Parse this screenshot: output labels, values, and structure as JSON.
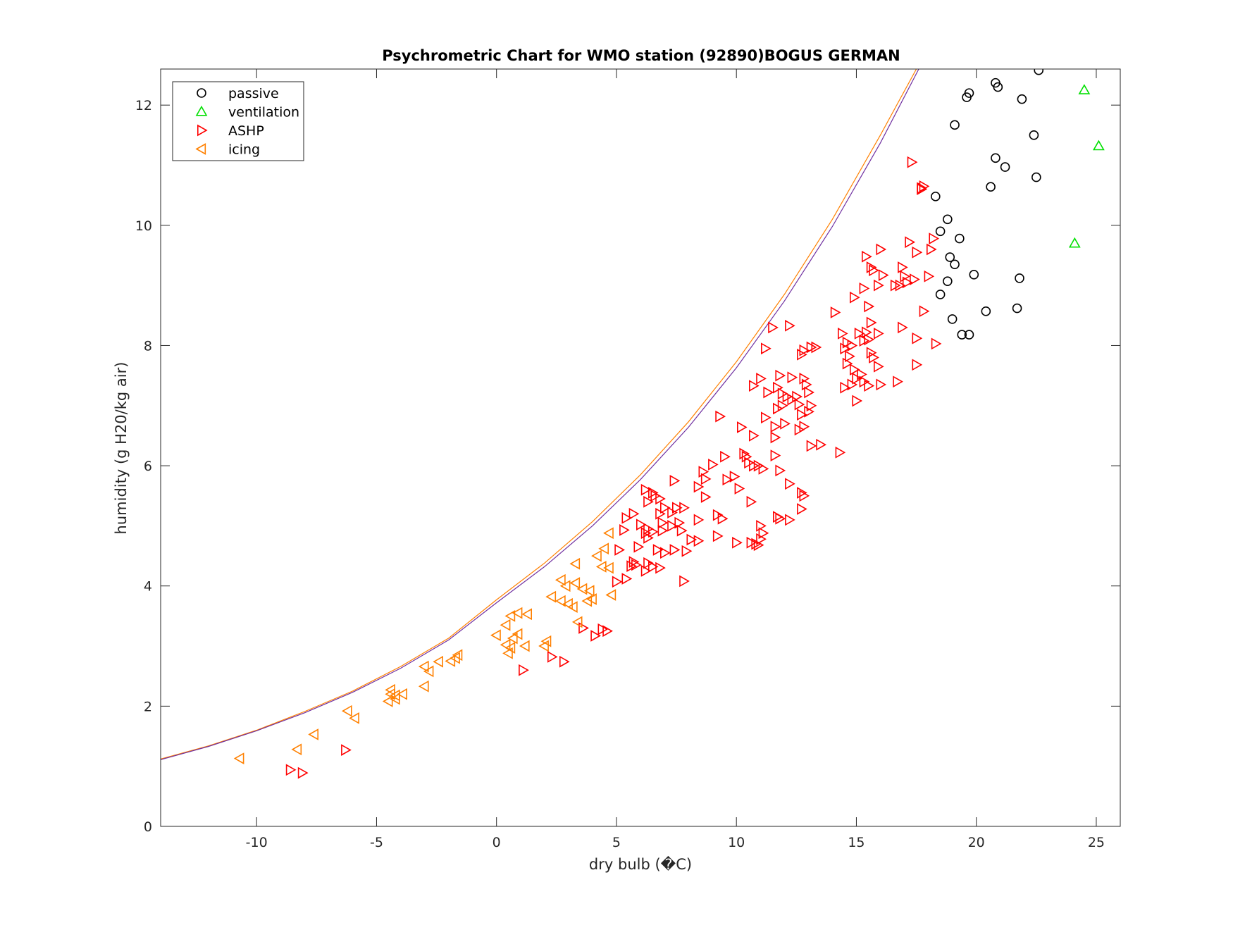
{
  "chart_data": {
    "type": "scatter",
    "title": "Psychrometric Chart for WMO station (92890)BOGUS GERMAN",
    "xlabel": "dry bulb (�C)",
    "ylabel": "humidity (g H20/kg air)",
    "xlim": [
      -14,
      26
    ],
    "ylim": [
      0,
      12.6
    ],
    "xticks": [
      -10,
      -5,
      0,
      5,
      10,
      15,
      20,
      25
    ],
    "yticks": [
      0,
      2,
      4,
      6,
      8,
      10,
      12
    ],
    "grid": false,
    "legend_position": "top-left",
    "saturation_curves": [
      {
        "color": "#ff8000",
        "x": [
          -14,
          -12,
          -10,
          -8,
          -6,
          -4,
          -2,
          0,
          2,
          4,
          6,
          8,
          10,
          12,
          14,
          16,
          17.5
        ],
        "y": [
          1.12,
          1.34,
          1.6,
          1.91,
          2.25,
          2.66,
          3.13,
          3.77,
          4.38,
          5.07,
          5.85,
          6.73,
          7.73,
          8.85,
          10.1,
          11.5,
          12.6
        ]
      },
      {
        "color": "#7030a0",
        "x": [
          -14,
          -12,
          -10,
          -8,
          -6,
          -4,
          -2,
          0,
          2,
          4,
          6,
          8,
          10,
          12,
          14,
          16,
          17.6
        ],
        "y": [
          1.11,
          1.33,
          1.59,
          1.89,
          2.23,
          2.63,
          3.1,
          3.72,
          4.32,
          5.0,
          5.77,
          6.64,
          7.63,
          8.74,
          9.98,
          11.37,
          12.6
        ]
      }
    ],
    "series": [
      {
        "name": "passive",
        "marker": "circle",
        "color": "#000000",
        "points": [
          [
            22.6,
            12.58
          ],
          [
            20.8,
            12.37
          ],
          [
            20.9,
            12.3
          ],
          [
            19.7,
            12.2
          ],
          [
            19.6,
            12.13
          ],
          [
            21.9,
            12.1
          ],
          [
            19.1,
            11.67
          ],
          [
            22.4,
            11.5
          ],
          [
            20.8,
            11.12
          ],
          [
            21.2,
            10.97
          ],
          [
            22.5,
            10.8
          ],
          [
            20.6,
            10.64
          ],
          [
            18.3,
            10.48
          ],
          [
            18.8,
            10.1
          ],
          [
            18.5,
            9.9
          ],
          [
            19.3,
            9.78
          ],
          [
            18.9,
            9.47
          ],
          [
            19.1,
            9.35
          ],
          [
            19.9,
            9.18
          ],
          [
            21.8,
            9.12
          ],
          [
            18.8,
            9.07
          ],
          [
            18.5,
            8.85
          ],
          [
            21.7,
            8.62
          ],
          [
            20.4,
            8.57
          ],
          [
            19.0,
            8.44
          ],
          [
            19.4,
            8.18
          ],
          [
            19.7,
            8.18
          ]
        ]
      },
      {
        "name": "ventilation",
        "marker": "triangle-up",
        "color": "#00e000",
        "points": [
          [
            24.5,
            12.25
          ],
          [
            25.1,
            11.32
          ],
          [
            24.1,
            9.7
          ]
        ]
      },
      {
        "name": "ASHP",
        "marker": "triangle-right",
        "color": "#ff0000",
        "points": [
          [
            17.3,
            11.05
          ],
          [
            17.7,
            10.62
          ],
          [
            17.7,
            10.6
          ],
          [
            17.8,
            10.65
          ],
          [
            17.2,
            9.72
          ],
          [
            18.2,
            9.78
          ],
          [
            17.5,
            9.55
          ],
          [
            18.1,
            9.6
          ],
          [
            15.4,
            9.48
          ],
          [
            16.0,
            9.6
          ],
          [
            15.6,
            9.3
          ],
          [
            15.7,
            9.25
          ],
          [
            16.9,
            9.3
          ],
          [
            17.0,
            9.15
          ],
          [
            17.1,
            9.05
          ],
          [
            17.4,
            9.1
          ],
          [
            18.0,
            9.15
          ],
          [
            16.1,
            9.17
          ],
          [
            15.3,
            8.95
          ],
          [
            15.9,
            9.0
          ],
          [
            16.6,
            9.0
          ],
          [
            16.8,
            9.0
          ],
          [
            14.9,
            8.8
          ],
          [
            14.1,
            8.55
          ],
          [
            15.5,
            8.65
          ],
          [
            17.8,
            8.57
          ],
          [
            15.4,
            8.22
          ],
          [
            15.6,
            8.38
          ],
          [
            14.4,
            8.2
          ],
          [
            16.9,
            8.3
          ],
          [
            13.1,
            7.97
          ],
          [
            13.3,
            7.97
          ],
          [
            12.8,
            7.92
          ],
          [
            12.7,
            7.85
          ],
          [
            14.5,
            7.95
          ],
          [
            14.6,
            8.05
          ],
          [
            14.8,
            8.0
          ],
          [
            15.1,
            8.2
          ],
          [
            15.3,
            8.08
          ],
          [
            15.5,
            8.1
          ],
          [
            15.9,
            8.2
          ],
          [
            17.5,
            8.12
          ],
          [
            18.3,
            8.03
          ],
          [
            11.5,
            8.3
          ],
          [
            12.2,
            8.33
          ],
          [
            11.2,
            7.95
          ],
          [
            14.7,
            7.82
          ],
          [
            14.6,
            7.7
          ],
          [
            14.9,
            7.6
          ],
          [
            15.0,
            7.45
          ],
          [
            15.2,
            7.52
          ],
          [
            15.6,
            7.88
          ],
          [
            15.7,
            7.8
          ],
          [
            15.9,
            7.65
          ],
          [
            17.5,
            7.68
          ],
          [
            14.5,
            7.3
          ],
          [
            14.8,
            7.35
          ],
          [
            15.3,
            7.4
          ],
          [
            15.5,
            7.33
          ],
          [
            16.0,
            7.35
          ],
          [
            16.7,
            7.4
          ],
          [
            15.0,
            7.08
          ],
          [
            11.8,
            7.5
          ],
          [
            12.3,
            7.47
          ],
          [
            12.8,
            7.45
          ],
          [
            11.0,
            7.45
          ],
          [
            11.7,
            7.3
          ],
          [
            11.9,
            7.2
          ],
          [
            12.1,
            7.15
          ],
          [
            12.3,
            7.1
          ],
          [
            12.6,
            7.02
          ],
          [
            12.9,
            7.35
          ],
          [
            13.0,
            7.22
          ],
          [
            10.7,
            7.33
          ],
          [
            11.3,
            7.22
          ],
          [
            11.7,
            6.95
          ],
          [
            11.9,
            7.0
          ],
          [
            12.5,
            7.15
          ],
          [
            12.7,
            6.85
          ],
          [
            13.1,
            7.0
          ],
          [
            13.0,
            6.9
          ],
          [
            11.2,
            6.8
          ],
          [
            11.6,
            6.65
          ],
          [
            12.0,
            6.7
          ],
          [
            12.6,
            6.6
          ],
          [
            12.8,
            6.65
          ],
          [
            13.1,
            6.33
          ],
          [
            13.5,
            6.35
          ],
          [
            14.3,
            6.22
          ],
          [
            9.3,
            6.82
          ],
          [
            10.2,
            6.64
          ],
          [
            10.7,
            6.5
          ],
          [
            11.6,
            6.47
          ],
          [
            9.5,
            6.15
          ],
          [
            10.3,
            6.2
          ],
          [
            10.4,
            6.15
          ],
          [
            10.5,
            6.05
          ],
          [
            10.7,
            6.0
          ],
          [
            10.9,
            6.0
          ],
          [
            11.1,
            5.95
          ],
          [
            11.6,
            6.17
          ],
          [
            11.8,
            5.92
          ],
          [
            12.2,
            5.7
          ],
          [
            12.7,
            5.55
          ],
          [
            12.8,
            5.5
          ],
          [
            9.0,
            6.02
          ],
          [
            9.6,
            5.77
          ],
          [
            9.9,
            5.82
          ],
          [
            8.6,
            5.9
          ],
          [
            8.7,
            5.78
          ],
          [
            8.4,
            5.65
          ],
          [
            10.1,
            5.62
          ],
          [
            7.4,
            5.75
          ],
          [
            6.2,
            5.6
          ],
          [
            6.5,
            5.55
          ],
          [
            6.6,
            5.5
          ],
          [
            6.8,
            5.45
          ],
          [
            6.3,
            5.4
          ],
          [
            10.6,
            5.4
          ],
          [
            12.7,
            5.28
          ],
          [
            11.7,
            5.15
          ],
          [
            11.8,
            5.12
          ],
          [
            12.2,
            5.1
          ],
          [
            9.2,
            5.18
          ],
          [
            9.4,
            5.12
          ],
          [
            8.7,
            5.48
          ],
          [
            7.0,
            5.3
          ],
          [
            7.5,
            5.3
          ],
          [
            7.8,
            5.3
          ],
          [
            7.3,
            5.22
          ],
          [
            6.8,
            5.2
          ],
          [
            6.9,
            5.05
          ],
          [
            5.4,
            5.13
          ],
          [
            5.7,
            5.2
          ],
          [
            6.0,
            5.02
          ],
          [
            6.3,
            4.95
          ],
          [
            6.5,
            4.9
          ],
          [
            6.9,
            4.92
          ],
          [
            7.3,
            5.0
          ],
          [
            7.6,
            5.05
          ],
          [
            8.4,
            5.1
          ],
          [
            5.3,
            4.93
          ],
          [
            6.2,
            4.88
          ],
          [
            6.3,
            4.8
          ],
          [
            7.7,
            4.92
          ],
          [
            8.1,
            4.77
          ],
          [
            8.4,
            4.75
          ],
          [
            9.2,
            4.83
          ],
          [
            10.0,
            4.72
          ],
          [
            10.6,
            4.72
          ],
          [
            10.8,
            4.7
          ],
          [
            10.9,
            4.68
          ],
          [
            11.0,
            4.78
          ],
          [
            11.1,
            4.88
          ],
          [
            11.0,
            5.0
          ],
          [
            5.9,
            4.65
          ],
          [
            6.7,
            4.6
          ],
          [
            7.0,
            4.55
          ],
          [
            7.4,
            4.6
          ],
          [
            7.9,
            4.58
          ],
          [
            5.1,
            4.6
          ],
          [
            5.7,
            4.4
          ],
          [
            5.8,
            4.35
          ],
          [
            6.3,
            4.38
          ],
          [
            6.5,
            4.32
          ],
          [
            6.8,
            4.3
          ],
          [
            5.6,
            4.33
          ],
          [
            6.2,
            4.25
          ],
          [
            5.4,
            4.12
          ],
          [
            5.0,
            4.07
          ],
          [
            7.8,
            4.08
          ],
          [
            3.6,
            3.3
          ],
          [
            4.4,
            3.28
          ],
          [
            4.6,
            3.25
          ],
          [
            4.1,
            3.17
          ],
          [
            1.1,
            2.6
          ],
          [
            2.3,
            2.82
          ],
          [
            2.8,
            2.74
          ],
          [
            -6.3,
            1.27
          ],
          [
            -8.6,
            0.94
          ],
          [
            -8.1,
            0.89
          ]
        ]
      },
      {
        "name": "icing",
        "marker": "triangle-left",
        "color": "#ff8000",
        "points": [
          [
            4.7,
            4.88
          ],
          [
            4.5,
            4.62
          ],
          [
            4.2,
            4.5
          ],
          [
            4.4,
            4.32
          ],
          [
            4.7,
            4.3
          ],
          [
            3.3,
            4.37
          ],
          [
            2.7,
            4.1
          ],
          [
            2.9,
            4.0
          ],
          [
            3.3,
            4.05
          ],
          [
            3.6,
            3.95
          ],
          [
            3.9,
            3.92
          ],
          [
            4.0,
            3.78
          ],
          [
            3.8,
            3.75
          ],
          [
            2.3,
            3.82
          ],
          [
            2.7,
            3.75
          ],
          [
            3.0,
            3.7
          ],
          [
            3.2,
            3.65
          ],
          [
            4.8,
            3.85
          ],
          [
            1.3,
            3.53
          ],
          [
            0.9,
            3.55
          ],
          [
            0.6,
            3.5
          ],
          [
            3.4,
            3.4
          ],
          [
            0.4,
            3.35
          ],
          [
            0.9,
            3.2
          ],
          [
            0.7,
            3.13
          ],
          [
            0.0,
            3.18
          ],
          [
            2.1,
            3.08
          ],
          [
            2.0,
            3.0
          ],
          [
            0.4,
            3.02
          ],
          [
            0.6,
            2.97
          ],
          [
            1.2,
            3.0
          ],
          [
            0.5,
            2.88
          ],
          [
            -1.6,
            2.85
          ],
          [
            -1.7,
            2.8
          ],
          [
            -1.9,
            2.75
          ],
          [
            -2.4,
            2.74
          ],
          [
            -3.0,
            2.66
          ],
          [
            -2.8,
            2.58
          ],
          [
            -3.0,
            2.33
          ],
          [
            -4.4,
            2.27
          ],
          [
            -4.4,
            2.2
          ],
          [
            -4.2,
            2.18
          ],
          [
            -3.9,
            2.2
          ],
          [
            -4.2,
            2.12
          ],
          [
            -4.5,
            2.08
          ],
          [
            -6.2,
            1.92
          ],
          [
            -5.9,
            1.8
          ],
          [
            -7.6,
            1.53
          ],
          [
            -8.3,
            1.28
          ],
          [
            -10.7,
            1.13
          ]
        ]
      }
    ]
  }
}
